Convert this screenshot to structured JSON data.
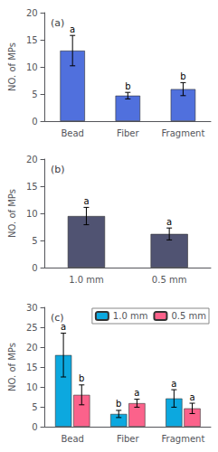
{
  "chart_data": [
    {
      "type": "bar",
      "title": "(a)",
      "categories": [
        "Bead",
        "Fiber",
        "Fragment"
      ],
      "values": [
        13.0,
        4.7,
        5.9
      ],
      "errors": [
        2.8,
        0.6,
        1.2
      ],
      "annotations": [
        "a",
        "b",
        "b"
      ],
      "ylabel": "NO. of MPs",
      "ylim": [
        0,
        20
      ],
      "yticks": [
        0,
        5,
        10,
        15,
        20
      ],
      "grid": false
    },
    {
      "type": "bar",
      "title": "(b)",
      "categories": [
        "1.0 mm",
        "0.5 mm"
      ],
      "values": [
        9.5,
        6.2
      ],
      "errors": [
        1.6,
        1.1
      ],
      "annotations": [
        "a",
        "a"
      ],
      "ylabel": "NO. of MPs",
      "ylim": [
        0,
        20
      ],
      "yticks": [
        0,
        5,
        10,
        15,
        20
      ],
      "grid": false
    },
    {
      "type": "bar",
      "title": "(c)",
      "categories": [
        "Bead",
        "Fiber",
        "Fragment"
      ],
      "series": [
        {
          "name": "1.0 mm",
          "values": [
            18.0,
            3.2,
            7.1
          ],
          "errors": [
            5.5,
            0.9,
            2.2
          ],
          "annotations": [
            "a",
            "b",
            "a"
          ]
        },
        {
          "name": "0.5 mm",
          "values": [
            8.0,
            5.9,
            4.6
          ],
          "errors": [
            2.5,
            1.0,
            1.3
          ],
          "annotations": [
            "b",
            "a",
            "a"
          ]
        }
      ],
      "ylabel": "NO. of MPs",
      "ylim": [
        0,
        30
      ],
      "yticks": [
        0,
        5,
        10,
        15,
        20,
        25,
        30
      ],
      "grid": false,
      "legend": "upper right"
    }
  ]
}
